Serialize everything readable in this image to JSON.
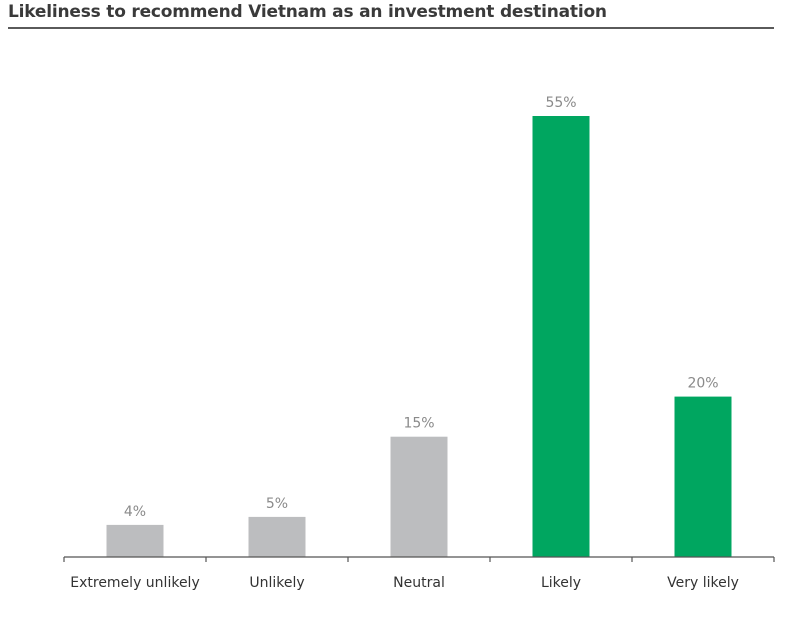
{
  "title": "Likeliness to recommend Vietnam as an investment destination",
  "colors": {
    "neutral_bar": "#bcbdbf",
    "positive_bar": "#00a660",
    "axis": "#555555",
    "title_rule": "#5a5a5a"
  },
  "chart_data": {
    "type": "bar",
    "title": "Likeliness to recommend Vietnam as an investment destination",
    "categories": [
      "Extremely unlikely",
      "Unlikely",
      "Neutral",
      "Likely",
      "Very likely"
    ],
    "values": [
      4,
      5,
      15,
      55,
      20
    ],
    "value_labels": [
      "4%",
      "5%",
      "15%",
      "55%",
      "20%"
    ],
    "bar_colors": [
      "#bcbdbf",
      "#bcbdbf",
      "#bcbdbf",
      "#00a660",
      "#00a660"
    ],
    "xlabel": "",
    "ylabel": "",
    "ylim": [
      0,
      55
    ],
    "grid": false,
    "legend": "none"
  }
}
